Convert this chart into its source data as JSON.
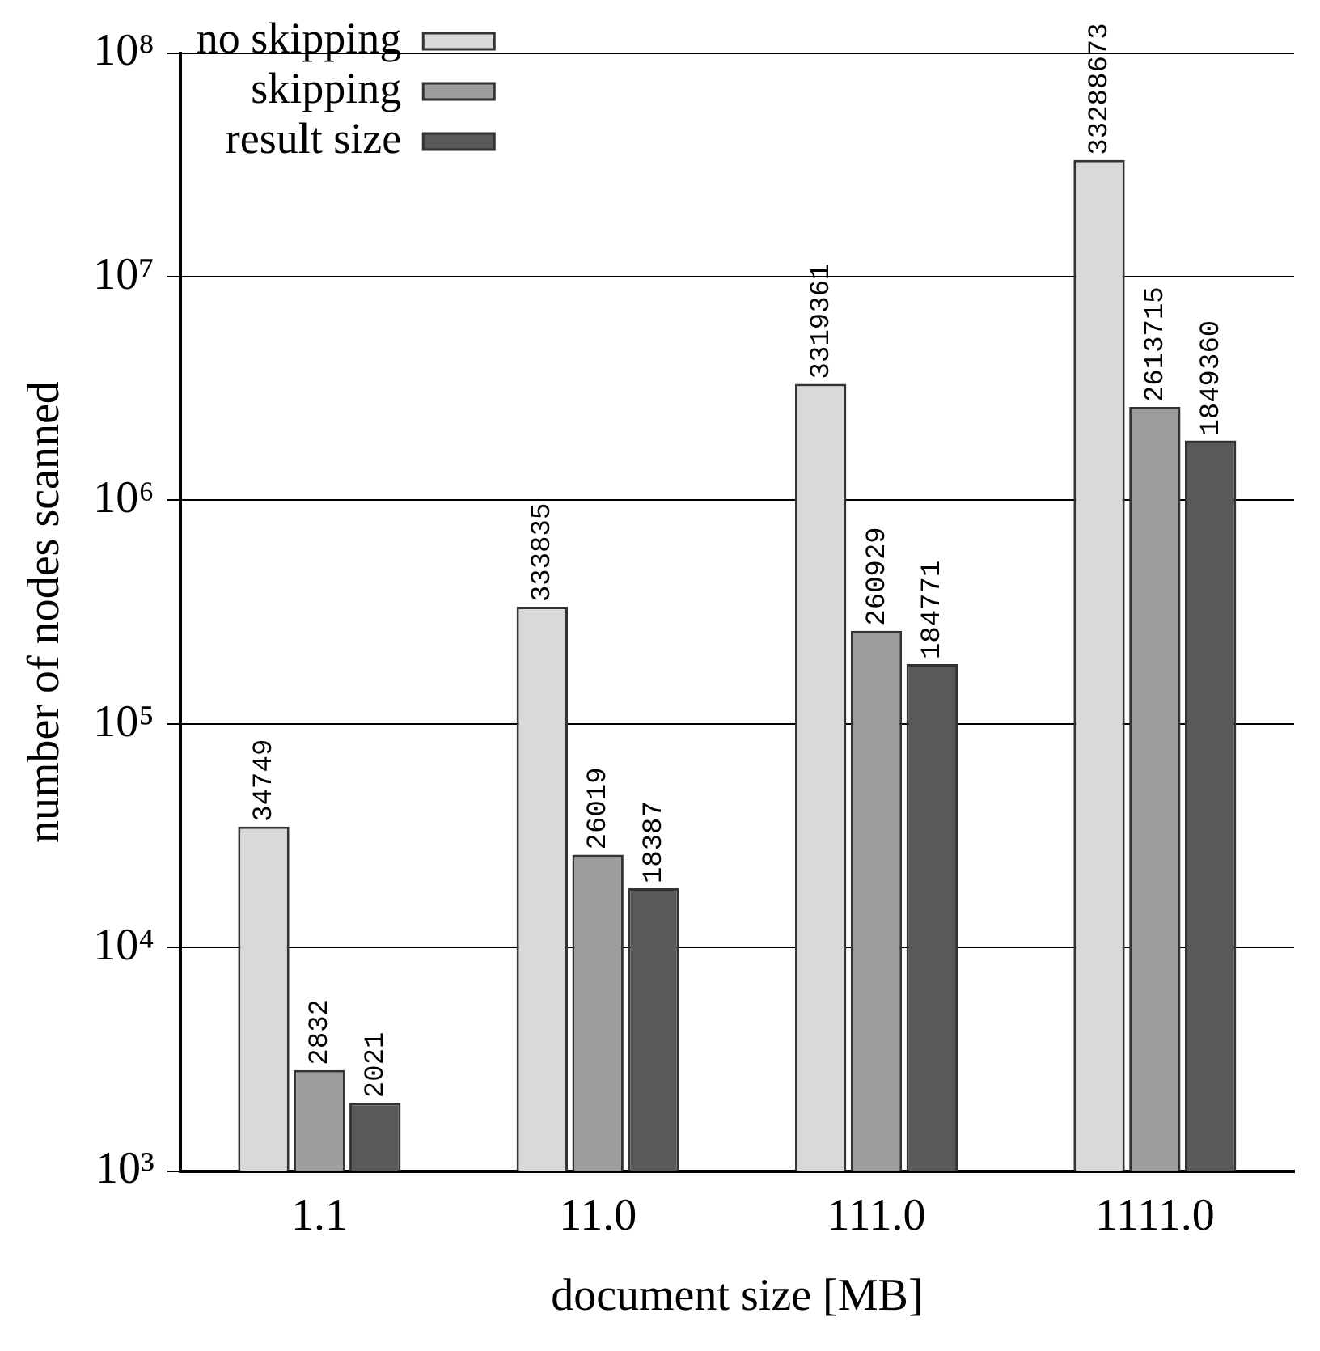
{
  "chart_data": {
    "type": "bar",
    "xlabel": "document size [MB]",
    "ylabel": "number of nodes scanned",
    "categories": [
      "1.1",
      "11.0",
      "111.0",
      "1111.0"
    ],
    "series": [
      {
        "name": "no skipping",
        "color": "#d9d9d9",
        "values": [
          34749,
          333835,
          3319361,
          33288673
        ]
      },
      {
        "name": "skipping",
        "color": "#9d9d9d",
        "values": [
          2832,
          26019,
          260929,
          2613715
        ]
      },
      {
        "name": "result size",
        "color": "#595959",
        "values": [
          2021,
          18387,
          184771,
          1849360
        ]
      }
    ],
    "log": "y",
    "ylim": [
      1000,
      100000000
    ],
    "yticks": [
      {
        "value": 1000,
        "label": "10³"
      },
      {
        "value": 10000,
        "label": "10⁴"
      },
      {
        "value": 100000,
        "label": "10⁵"
      },
      {
        "value": 1000000,
        "label": "10⁶"
      },
      {
        "value": 10000000,
        "label": "10⁷"
      },
      {
        "value": 100000000,
        "label": "10⁸"
      }
    ],
    "grid": "y",
    "legend": "top left",
    "data_labels": true
  }
}
